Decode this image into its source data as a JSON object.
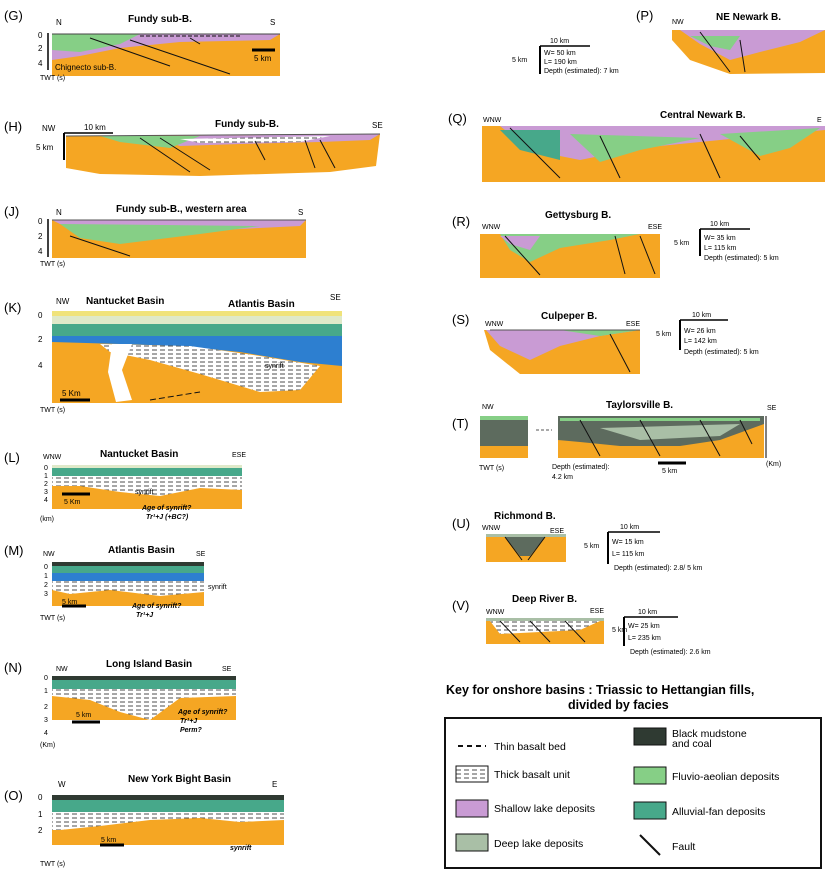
{
  "colors": {
    "basement": "#f5a623",
    "shallow_lake": "#c99bd4",
    "deep_lake": "#a9bfa6",
    "fluvio": "#86cf86",
    "alluvial": "#47a88a",
    "black_mudstone": "#2f3a32",
    "blue": "#2d7fd0",
    "yellow": "#f0e37a",
    "pale_green": "#dfe9c9"
  },
  "panels": {
    "G": {
      "letter": "(G)",
      "title": "Fundy sub-B.",
      "left": "N",
      "right": "S",
      "scale": "5 km",
      "note": "Chignecto sub-B.",
      "twt": "TWT (s)",
      "ticks": [
        "0",
        "2",
        "4"
      ]
    },
    "H": {
      "letter": "(H)",
      "title": "Fundy sub-B.",
      "left": "NW",
      "right": "SE",
      "hscale": "10 km",
      "vscale": "5 km"
    },
    "J": {
      "letter": "(J)",
      "title": "Fundy sub-B., western area",
      "left": "N",
      "right": "S",
      "twt": "TWT (s)",
      "ticks": [
        "0",
        "2",
        "4"
      ]
    },
    "K": {
      "letter": "(K)",
      "title": "Nantucket Basin",
      "title2": "Atlantis Basin",
      "left": "NW",
      "right": "SE",
      "scale": "5 Km",
      "twt": "TWT (s)",
      "ticks": [
        "0",
        "2",
        "4"
      ],
      "note": "synrift"
    },
    "L": {
      "letter": "(L)",
      "title": "Nantucket Basin",
      "left": "WNW",
      "right": "ESE",
      "scale": "5 Km",
      "unit": "(km)",
      "ticks": [
        "0",
        "1",
        "2",
        "3",
        "4"
      ],
      "note": "synrift",
      "age1": "Age of synrift?",
      "age2": "Tr¹+J (+BC?)"
    },
    "M": {
      "letter": "(M)",
      "title": "Atlantis Basin",
      "left": "NW",
      "right": "SE",
      "scale": "5 km",
      "twt": "TWT (s)",
      "ticks": [
        "0",
        "1",
        "2",
        "3"
      ],
      "note": "synrift",
      "age1": "Age of synrift?",
      "age2": "Tr¹+J"
    },
    "N": {
      "letter": "(N)",
      "title": "Long Island Basin",
      "left": "NW",
      "right": "SE",
      "scale": "5 km",
      "unit": "(Km)",
      "ticks": [
        "0",
        "1",
        "2",
        "3",
        "4"
      ],
      "age1": "Age of synrift?",
      "age2": "Tr¹+J",
      "age3": "Perm?"
    },
    "O": {
      "letter": "(O)",
      "title": "New York Bight Basin",
      "left": "W",
      "right": "E",
      "scale": "5 km",
      "twt": "TWT (s)",
      "ticks": [
        "0",
        "1",
        "2"
      ],
      "note": "synrift"
    },
    "P": {
      "letter": "(P)",
      "title": "NE Newark B.",
      "left": "NW",
      "hscale": "10 km",
      "vscale": "5 km",
      "w": "W= 50 km",
      "l": "L= 190 km",
      "depth": "Depth (estimated): 7 km"
    },
    "Q": {
      "letter": "(Q)",
      "title": "Central Newark B.",
      "left": "WNW",
      "right": "E"
    },
    "R": {
      "letter": "(R)",
      "title": "Gettysburg B.",
      "left": "WNW",
      "right": "ESE",
      "hscale": "10 km",
      "vscale": "5 km",
      "w": "W= 35 km",
      "l": "L= 115 km",
      "depth": "Depth (estimated): 5 km"
    },
    "S": {
      "letter": "(S)",
      "title": "Culpeper B.",
      "left": "WNW",
      "right": "ESE",
      "hscale": "10 km",
      "vscale": "5 km",
      "w": "W= 26 km",
      "l": "L= 142 km",
      "depth": "Depth (estimated): 5 km"
    },
    "T": {
      "letter": "(T)",
      "title": "Taylorsville B.",
      "left": "NW",
      "right": "SE",
      "twt": "TWT (s)",
      "depth": "Depth (estimated):",
      "depth2": "4.2 km",
      "scale": "5 km",
      "unit": "(Km)"
    },
    "U": {
      "letter": "(U)",
      "title": "Richmond B.",
      "left": "WNW",
      "right": "ESE",
      "hscale": "10 km",
      "vscale": "5 km",
      "w": "W= 15 km",
      "l": "L= 115 km",
      "depth": "Depth (estimated): 2.8/ 5 km"
    },
    "V": {
      "letter": "(V)",
      "title": "Deep River B.",
      "left": "WNW",
      "right": "ESE",
      "hscale": "10 km",
      "vscale": "5 km",
      "w": "W= 25 km",
      "l": "L= 235 km",
      "depth": "Depth (estimated): 2.6 km"
    }
  },
  "key": {
    "title1": "Key for onshore basins : Triassic to Hettangian fills,",
    "title2": "divided by facies",
    "thin_basalt": "Thin basalt bed",
    "thick_basalt": "Thick basalt unit",
    "shallow_lake": "Shallow lake deposits",
    "deep_lake": "Deep lake deposits",
    "black_mudstone1": "Black mudstone",
    "black_mudstone2": "and  coal",
    "fluvio": "Fluvio-aeolian deposits",
    "alluvial": "Alluvial-fan deposits",
    "fault": "Fault"
  }
}
